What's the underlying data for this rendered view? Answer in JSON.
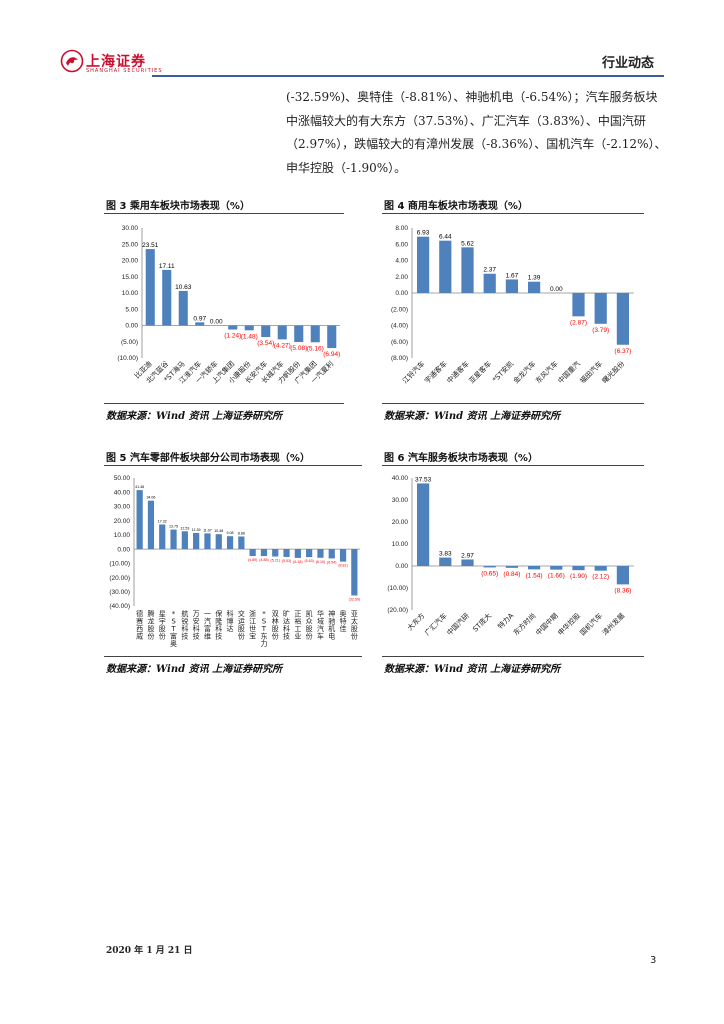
{
  "header": {
    "logo_text": "上海证券",
    "logo_sub": "SHANGHAI SECURITIES",
    "title": "行业动态"
  },
  "paragraph": {
    "lines": [
      "(-32.59%)、奥特佳（-8.81%）、神驰机电（-6.54%）；汽车服务板块",
      "中涨幅较大的有大东方（37.53%）、广汇汽车（3.83%）、中国汽研",
      "（2.97%），跌幅较大的有漳州发展（-8.36%）、国机汽车（-2.12%）、",
      "申华控股（-1.90%）。"
    ]
  },
  "figures": [
    {
      "title": "图 3 乘用车板块市场表现（%）",
      "source": "数据来源：Wind 资讯 上海证券研究所"
    },
    {
      "title": "图 4 商用车板块市场表现（%）",
      "source": "数据来源：Wind 资讯 上海证券研究所"
    },
    {
      "title": "图 5 汽车零部件板块部分公司市场表现（%）",
      "source": "数据来源：Wind 资讯 上海证券研究所"
    },
    {
      "title": "图 6 汽车服务板块市场表现（%）",
      "source": "数据来源：Wind 资讯 上海证券研究所"
    }
  ],
  "colors": {
    "bar": "#4f81bd",
    "negative_label": "#ff0000",
    "positive_label": "#000000",
    "header_line": "#3b5aa0",
    "logo": "#c8102e"
  },
  "chart_data": [
    {
      "type": "bar",
      "categories": [
        "比亚迪",
        "北汽蓝谷",
        "*ST海马",
        "江淮汽车",
        "一汽轿车",
        "上汽集团",
        "小康股份",
        "长安汽车",
        "长城汽车",
        "力帆股份",
        "广汽集团",
        "一汽夏利"
      ],
      "values": [
        23.51,
        17.11,
        10.63,
        0.97,
        0.0,
        -1.24,
        -1.48,
        -3.54,
        -4.27,
        -5.08,
        -5.16,
        -6.94
      ],
      "labels": [
        "23.51",
        "17.11",
        "10.63",
        "0.97",
        "0.00",
        "(1.24)",
        "(1.48)",
        "(3.54)",
        "(4.27)",
        "(5.08)",
        "(5.16)",
        "(6.94)"
      ],
      "ylim": [
        -10,
        30
      ],
      "yticks": [
        30,
        25,
        20,
        15,
        10,
        5,
        0,
        -5,
        -10
      ],
      "ytick_labels": [
        "30.00",
        "25.00",
        "20.00",
        "15.00",
        "10.00",
        "5.00",
        "0.00",
        "(5.00)",
        "(10.00)"
      ]
    },
    {
      "type": "bar",
      "categories": [
        "江铃汽车",
        "宇通客车",
        "中通客车",
        "亚星客车",
        "*ST安凯",
        "金龙汽车",
        "东风汽车",
        "中国重汽",
        "福田汽车",
        "曙光股份"
      ],
      "values": [
        6.93,
        6.44,
        5.62,
        2.37,
        1.67,
        1.39,
        0.0,
        -2.87,
        -3.79,
        -6.37
      ],
      "labels": [
        "6.93",
        "6.44",
        "5.62",
        "2.37",
        "1.67",
        "1.39",
        "0.00",
        "(2.87)",
        "(3.79)",
        "(6.37)"
      ],
      "ylim": [
        -8,
        8
      ],
      "yticks": [
        8,
        6,
        4,
        2,
        0,
        -2,
        -4,
        -6,
        -8
      ],
      "ytick_labels": [
        "8.00",
        "6.00",
        "4.00",
        "2.00",
        "0.00",
        "(2.00)",
        "(4.00)",
        "(6.00)",
        "(8.00)"
      ]
    },
    {
      "type": "bar",
      "categories": [
        "德赛西威",
        "腾龙股份",
        "星宇股份",
        "*ST富奥",
        "航锐科技",
        "万安科技",
        "一汽富维",
        "保隆科技",
        "科博达",
        "交运股份",
        "浙江世宝",
        "*ST东力",
        "双林股份",
        "旷达科技",
        "正裕工业",
        "凯众股份",
        "华域汽车",
        "神驰机电",
        "奥特佳",
        "亚太股份"
      ],
      "values": [
        41.48,
        34.06,
        17.32,
        13.75,
        12.53,
        11.39,
        11.07,
        10.48,
        9.08,
        8.88,
        -4.89,
        -4.88,
        -5.21,
        -5.53,
        -6.18,
        -5.63,
        -6.1,
        -6.54,
        -8.81,
        -32.59
      ],
      "labels": [
        "41.48",
        "34.06",
        "17.32",
        "13.75",
        "12.53",
        "11.39",
        "11.07",
        "10.48",
        "9.08",
        "8.88",
        "(4.89)",
        "(4.88)",
        "(5.21)",
        "(5.53)",
        "(6.18)",
        "(5.63)",
        "(6.10)",
        "(6.54)",
        "(8.81)",
        "(32.59)"
      ],
      "ylim": [
        -40,
        50
      ],
      "yticks": [
        50,
        40,
        30,
        20,
        10,
        0,
        -10,
        -20,
        -30,
        -40
      ],
      "ytick_labels": [
        "50.00",
        "40.00",
        "30.00",
        "20.00",
        "10.00",
        "0.00",
        "(10.00)",
        "(20.00)",
        "(30.00)",
        "(40.00)"
      ]
    },
    {
      "type": "bar",
      "categories": [
        "大东方",
        "广汇汽车",
        "中国汽研",
        "ST庞大",
        "特力A",
        "东方时尚",
        "中国中期",
        "申华控股",
        "国机汽车",
        "漳州发展"
      ],
      "values": [
        37.53,
        3.83,
        2.97,
        -0.65,
        -0.84,
        -1.54,
        -1.66,
        -1.9,
        -2.12,
        -8.36
      ],
      "labels": [
        "37.53",
        "3.83",
        "2.97",
        "(0.65)",
        "(0.84)",
        "(1.54)",
        "(1.66)",
        "(1.90)",
        "(2.12)",
        "(8.36)"
      ],
      "ylim": [
        -20,
        40
      ],
      "yticks": [
        40,
        30,
        20,
        10,
        0,
        -10,
        -20
      ],
      "ytick_labels": [
        "40.00",
        "30.00",
        "20.00",
        "10.00",
        "0.00",
        "(10.00)",
        "(20.00)"
      ]
    }
  ],
  "footer": {
    "date": "2020 年 1 月 21 日",
    "page": "3"
  }
}
